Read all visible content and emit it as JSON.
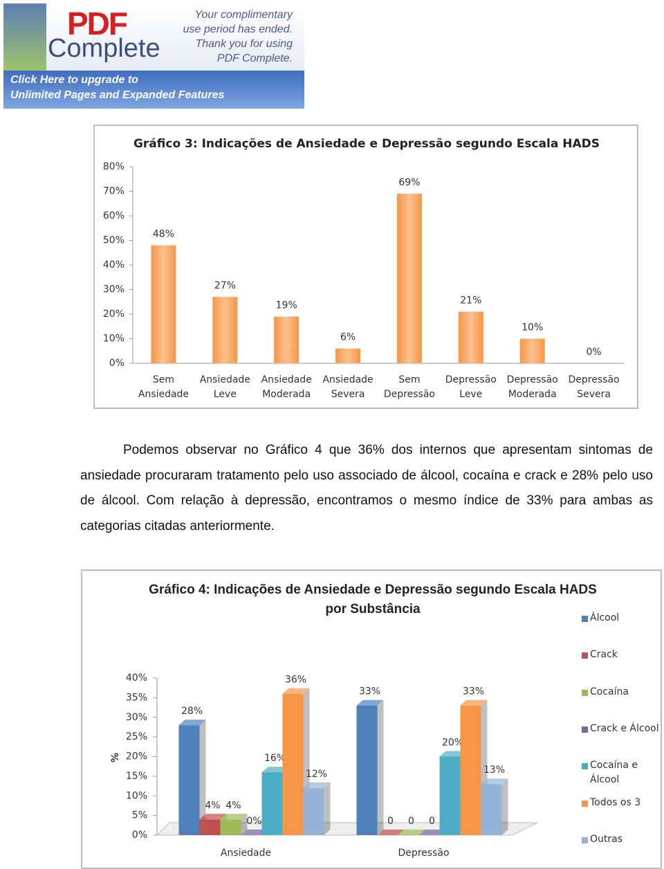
{
  "banner": {
    "logo": "PDF",
    "logo_sub": "Complete",
    "notice": [
      "Your complimentary",
      "use period has ended.",
      "Thank you for using",
      "PDF Complete."
    ],
    "upgrade": [
      "Click Here to upgrade to",
      "Unlimited Pages and Expanded Features"
    ]
  },
  "paragraph": "Podemos observar no Gráfico 4 que 36% dos internos que apresentam sintomas de ansiedade procuraram tratamento pelo uso associado de álcool, cocaína e crack e 28% pelo uso de álcool. Com relação à depressão, encontramos o mesmo índice de 33% para ambas as categorias citadas anteriormente.",
  "chart_data": [
    {
      "type": "bar",
      "title": "Gráfico 3: Indicações de Ansiedade e Depressão segundo Escala HADS",
      "categories": [
        "Sem Ansiedade",
        "Ansiedade Leve",
        "Ansiedade Moderada",
        "Ansiedade Severa",
        "Sem Depressão",
        "Depressão Leve",
        "Depressão Moderada",
        "Depressão Severa"
      ],
      "values": [
        48,
        27,
        19,
        6,
        69,
        21,
        10,
        0
      ],
      "value_labels": [
        "48%",
        "27%",
        "19%",
        "6%",
        "69%",
        "21%",
        "10%",
        "0%"
      ],
      "color": "#f79646",
      "ylim": [
        0,
        80
      ],
      "yticks": [
        {
          "value": 0,
          "label": "0%"
        },
        {
          "value": 10,
          "label": "10%"
        },
        {
          "value": 20,
          "label": "20%"
        },
        {
          "value": 30,
          "label": "30%"
        },
        {
          "value": 40,
          "label": "40%"
        },
        {
          "value": 50,
          "label": "50%"
        },
        {
          "value": 60,
          "label": "60%"
        },
        {
          "value": 70,
          "label": "70%"
        },
        {
          "value": 80,
          "label": "80%"
        }
      ]
    },
    {
      "type": "bar3d",
      "title": "Gráfico 4: Indicações de Ansiedade e Depressão segundo Escala HADS por Substância",
      "y_label": "%",
      "categories": [
        "Ansiedade",
        "Depressão"
      ],
      "legend": "right",
      "ylim": [
        0,
        40
      ],
      "yticks": [
        {
          "value": 0,
          "label": "0%"
        },
        {
          "value": 5,
          "label": "5%"
        },
        {
          "value": 10,
          "label": "10%"
        },
        {
          "value": 15,
          "label": "15%"
        },
        {
          "value": 20,
          "label": "20%"
        },
        {
          "value": 25,
          "label": "25%"
        },
        {
          "value": 30,
          "label": "30%"
        },
        {
          "value": 35,
          "label": "35%"
        },
        {
          "value": 40,
          "label": "40%"
        }
      ],
      "series": [
        {
          "name": "Álcool",
          "color": "#4f81bd",
          "values": [
            28,
            33
          ],
          "value_labels": [
            "28%",
            "33%"
          ]
        },
        {
          "name": "Crack",
          "color": "#c0504d",
          "values": [
            4,
            0
          ],
          "value_labels": [
            "4%",
            "0"
          ]
        },
        {
          "name": "Cocaína",
          "color": "#9bbb59",
          "values": [
            4,
            0
          ],
          "value_labels": [
            "4%",
            "0"
          ]
        },
        {
          "name": "Crack e Álcool",
          "color": "#8064a2",
          "values": [
            0,
            0
          ],
          "value_labels": [
            "0%",
            "0"
          ]
        },
        {
          "name": "Cocaína e Álcool",
          "color": "#4bacc6",
          "values": [
            16,
            20
          ],
          "value_labels": [
            "16%",
            "20%"
          ]
        },
        {
          "name": "Todos os 3",
          "color": "#f79646",
          "values": [
            36,
            33
          ],
          "value_labels": [
            "36%",
            "33%"
          ]
        },
        {
          "name": "Outras",
          "color": "#95b3d7",
          "values": [
            12,
            13
          ],
          "value_labels": [
            "12%",
            "13%"
          ]
        }
      ]
    }
  ]
}
